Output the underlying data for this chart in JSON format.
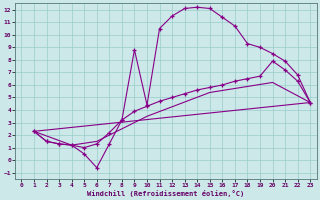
{
  "xlabel": "Windchill (Refroidissement éolien,°C)",
  "background_color": "#cce8e8",
  "grid_color": "#99cccc",
  "line_color": "#880088",
  "xlim": [
    -0.5,
    23.5
  ],
  "ylim": [
    -1.5,
    12.5
  ],
  "xticks": [
    0,
    1,
    2,
    3,
    4,
    5,
    6,
    7,
    8,
    9,
    10,
    11,
    12,
    13,
    14,
    15,
    16,
    17,
    18,
    19,
    20,
    21,
    22,
    23
  ],
  "yticks": [
    -1,
    0,
    1,
    2,
    3,
    4,
    5,
    6,
    7,
    8,
    9,
    10,
    11,
    12
  ],
  "curve1_x": [
    1,
    2,
    3,
    4,
    5,
    6,
    7,
    8,
    9,
    10,
    11,
    12,
    13,
    14,
    15,
    16,
    17,
    18,
    19,
    20,
    21,
    22,
    23
  ],
  "curve1_y": [
    2.3,
    1.5,
    1.3,
    1.2,
    0.5,
    -0.6,
    1.3,
    3.2,
    8.8,
    4.4,
    10.5,
    11.5,
    12.1,
    12.2,
    12.1,
    11.4,
    10.7,
    9.3,
    9.0,
    8.5,
    7.9,
    6.8,
    4.6
  ],
  "curve2_x": [
    1,
    2,
    3,
    4,
    5,
    6,
    7,
    8,
    9,
    10,
    11,
    12,
    13,
    14,
    15,
    16,
    17,
    18,
    19,
    20,
    21,
    22,
    23
  ],
  "curve2_y": [
    2.3,
    1.5,
    1.3,
    1.2,
    1.0,
    1.3,
    2.2,
    3.2,
    3.9,
    4.3,
    4.7,
    5.0,
    5.3,
    5.6,
    5.8,
    6.0,
    6.3,
    6.5,
    6.7,
    7.9,
    7.2,
    6.3,
    4.6
  ],
  "curve3_x": [
    1,
    4,
    6,
    10,
    15,
    20,
    23
  ],
  "curve3_y": [
    2.3,
    1.2,
    1.5,
    3.5,
    5.4,
    6.2,
    4.6
  ],
  "curve4_x": [
    1,
    23
  ],
  "curve4_y": [
    2.3,
    4.6
  ]
}
